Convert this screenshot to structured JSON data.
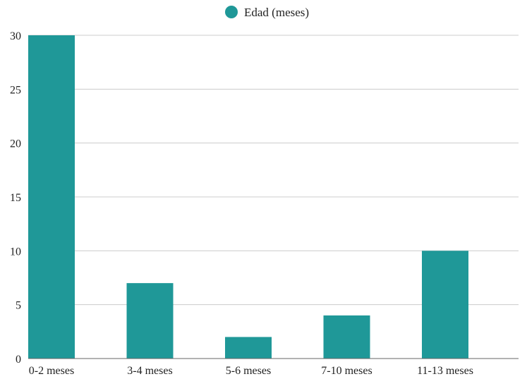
{
  "colors": {
    "bar": "#1f9898",
    "grid": "#cccccc",
    "axis": "#666666",
    "text": "#222222"
  },
  "chart_data": {
    "type": "bar",
    "categories": [
      "0-2 meses",
      "3-4 meses",
      "5-6 meses",
      "7-10 meses",
      "11-13 meses"
    ],
    "series": [
      {
        "name": "Edad (meses)",
        "values": [
          30,
          7,
          2,
          4,
          10
        ]
      }
    ],
    "title": "",
    "xlabel": "",
    "ylabel": "",
    "ylim": [
      0,
      30
    ],
    "yticks": [
      0,
      5,
      10,
      15,
      20,
      25,
      30
    ],
    "grid": true,
    "legend": "top-center"
  }
}
